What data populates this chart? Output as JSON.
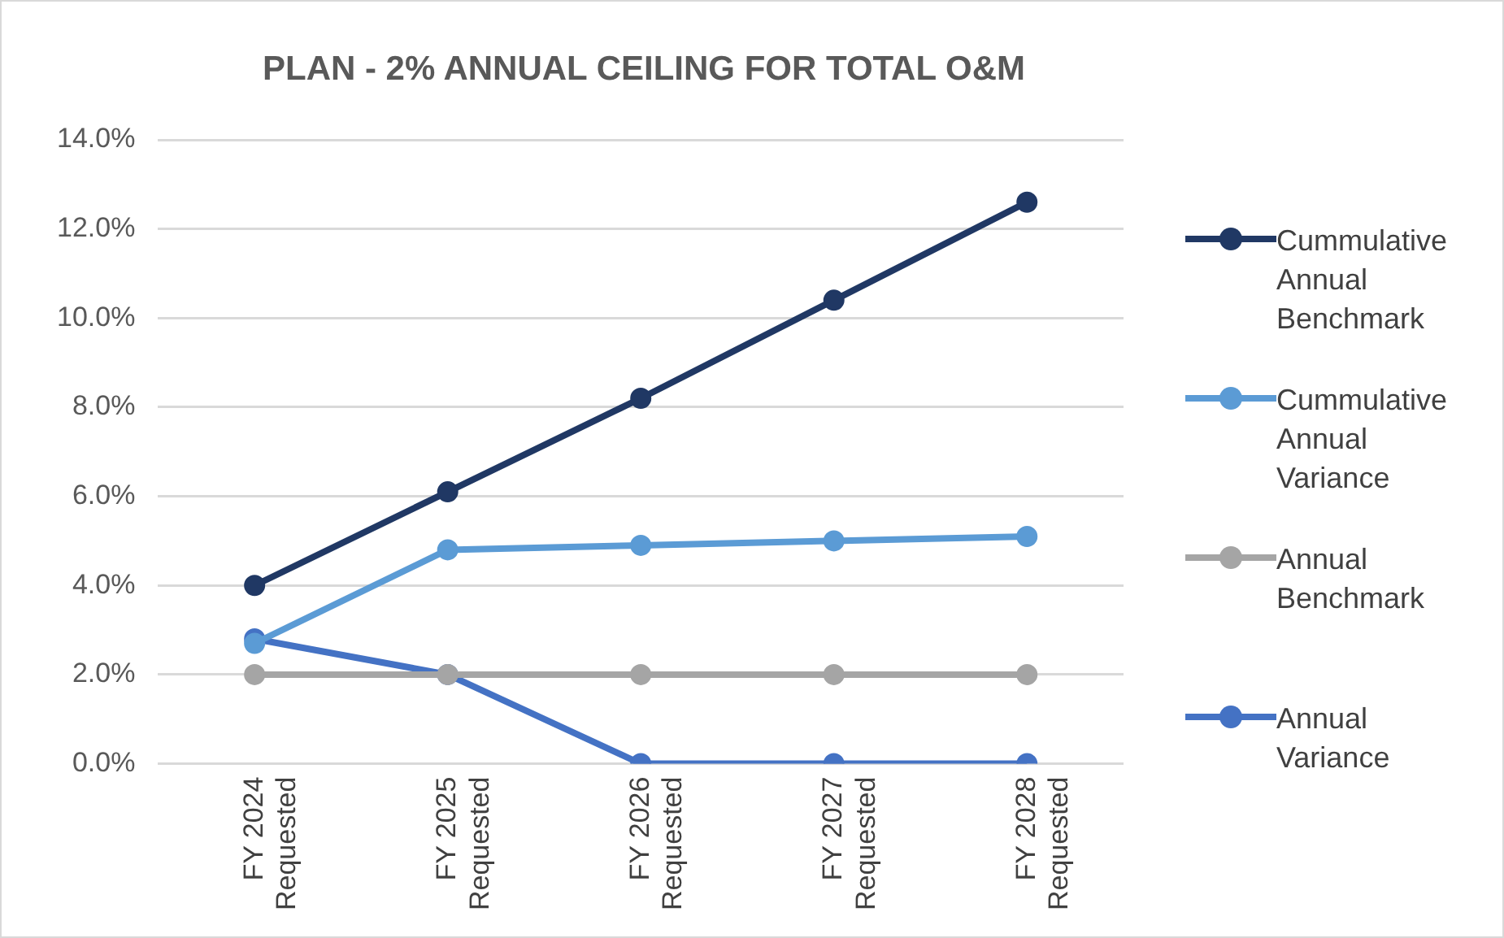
{
  "chart_data": {
    "type": "line",
    "title": "PLAN - 2% ANNUAL CEILING FOR TOTAL O&M",
    "categories": [
      "FY 2024\nRequested",
      "FY 2025\nRequested",
      "FY 2026\nRequested",
      "FY 2027\nRequested",
      "FY 2028\nRequested"
    ],
    "series": [
      {
        "name": "Cummulative Annual Benchmark",
        "color": "#203864",
        "values": [
          4.0,
          6.1,
          8.2,
          10.4,
          12.6
        ]
      },
      {
        "name": "Cummulative Annual Variance",
        "color": "#5b9bd5",
        "values": [
          2.7,
          4.8,
          4.9,
          5.0,
          5.1
        ]
      },
      {
        "name": "Annual Benchmark",
        "color": "#a5a5a5",
        "values": [
          2.0,
          2.0,
          2.0,
          2.0,
          2.0
        ]
      },
      {
        "name": "Annual Variance",
        "color": "#4472c4",
        "values": [
          2.8,
          2.0,
          0.0,
          0.0,
          0.0
        ]
      }
    ],
    "ylim": [
      0,
      14
    ],
    "yticks": [
      {
        "value": 0,
        "label": "0.0%"
      },
      {
        "value": 2,
        "label": "2.0%"
      },
      {
        "value": 4,
        "label": "4.0%"
      },
      {
        "value": 6,
        "label": "6.0%"
      },
      {
        "value": 8,
        "label": "8.0%"
      },
      {
        "value": 10,
        "label": "10.0%"
      },
      {
        "value": 12,
        "label": "12.0%"
      },
      {
        "value": 14,
        "label": "14.0%"
      }
    ],
    "grid": "y",
    "legend": "right",
    "marker": "circle",
    "line_style": "solid"
  }
}
